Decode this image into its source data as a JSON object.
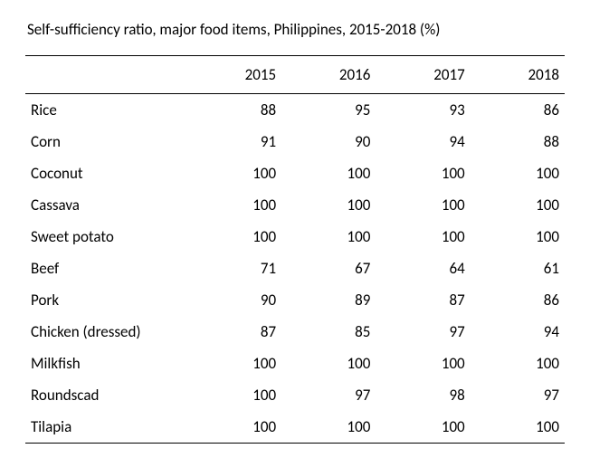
{
  "table": {
    "type": "table",
    "title": "Self-sufficiency ratio, major food items, Philippines, 2015-2018 (%)",
    "background_color": "#ffffff",
    "text_color": "#000000",
    "border_color": "#000000",
    "font_family": "Calibri",
    "title_fontsize": 17,
    "cell_fontsize": 17,
    "column_widths_pct": [
      30,
      17.5,
      17.5,
      17.5,
      17.5
    ],
    "column_align": [
      "left",
      "right",
      "right",
      "right",
      "right"
    ],
    "columns": [
      "",
      "2015",
      "2016",
      "2017",
      "2018"
    ],
    "rows": [
      [
        "Rice",
        88,
        95,
        93,
        86
      ],
      [
        "Corn",
        91,
        90,
        94,
        88
      ],
      [
        "Coconut",
        100,
        100,
        100,
        100
      ],
      [
        "Cassava",
        100,
        100,
        100,
        100
      ],
      [
        "Sweet potato",
        100,
        100,
        100,
        100
      ],
      [
        "Beef",
        71,
        67,
        64,
        61
      ],
      [
        "Pork",
        90,
        89,
        87,
        86
      ],
      [
        "Chicken (dressed)",
        87,
        85,
        97,
        94
      ],
      [
        "Milkfish",
        100,
        100,
        100,
        100
      ],
      [
        "Roundscad",
        100,
        97,
        98,
        97
      ],
      [
        "Tilapia",
        100,
        100,
        100,
        100
      ]
    ]
  }
}
